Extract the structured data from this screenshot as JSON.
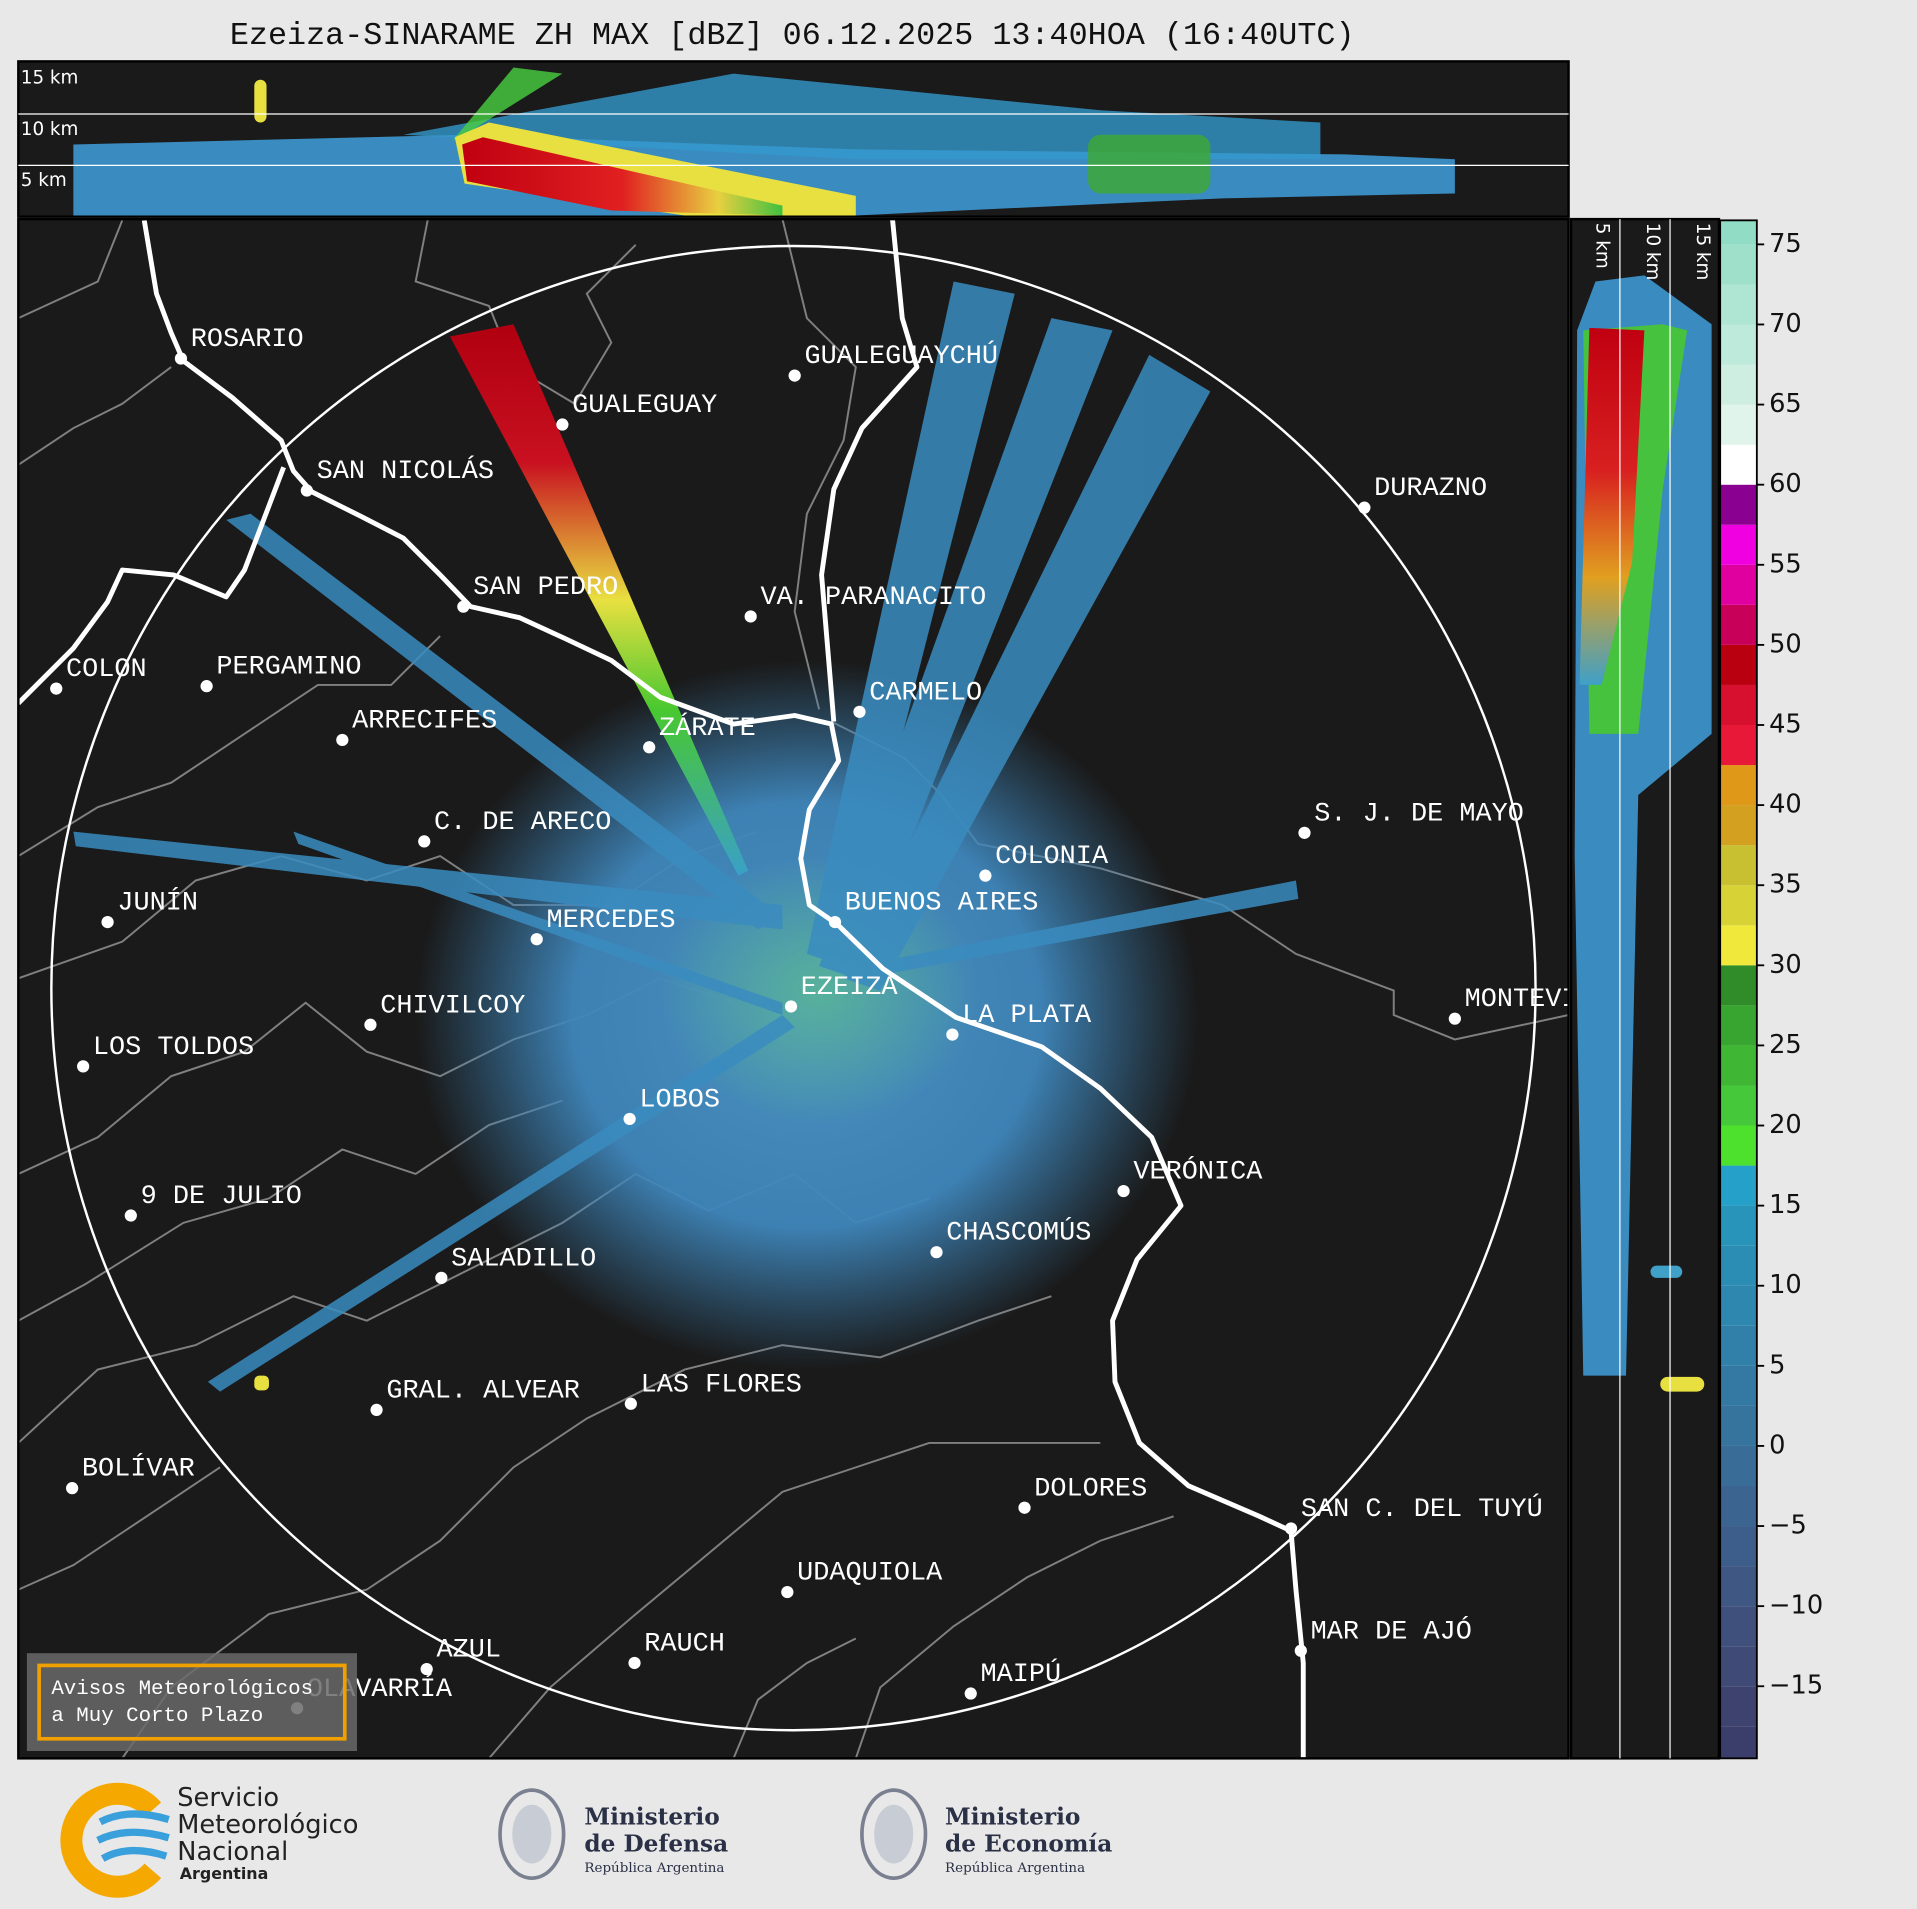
{
  "title": "Ezeiza-SINARAME ZH MAX [dBZ] 06.12.2025 13:40HOA (16:40UTC)",
  "height_labels_top": [
    "15 km",
    "10 km",
    "5 km"
  ],
  "height_labels_side": [
    "5 km",
    "10 km",
    "15 km"
  ],
  "cities": [
    "ROSARIO",
    "GUALEGUAY",
    "GUALEGUAYCHÚ",
    "SAN NICOLÁS",
    "DURAZNO",
    "SAN PEDRO",
    "VA. PARANACITO",
    "COLON",
    "PERGAMINO",
    "CARMELO",
    "ARRECIFES",
    "ZÁRATE",
    "C. DE ARECO",
    "S. J. DE MAYO",
    "COLONIA",
    "JUNÍN",
    "BUENOS AIRES",
    "MERCEDES",
    "EZEIZA",
    "MONTEVIDEO",
    "CHIVILCOY",
    "LA PLATA",
    "LOS TOLDOS",
    "LOBOS",
    "VERÓNICA",
    "9 DE JULIO",
    "CHASCOMÚS",
    "SALADILLO",
    "GRAL. ALVEAR",
    "LAS FLORES",
    "BOLÍVAR",
    "DOLORES",
    "SAN C. DEL TUYÚ",
    "UDAQUIOLA",
    "RAUCH",
    "MAR DE AJÓ",
    "AZUL",
    "MAIPÚ",
    "OLAVARRÍA"
  ],
  "colorbar": {
    "lim": [
      -19.5,
      76.5
    ],
    "ticks": [
      75,
      70,
      65,
      60,
      55,
      50,
      45,
      40,
      35,
      30,
      25,
      20,
      15,
      10,
      5,
      0,
      {
        "value": -5,
        "label": "−5"
      },
      {
        "value": -10,
        "label": "−10"
      },
      {
        "value": -15,
        "label": "−15"
      }
    ]
  },
  "notice": [
    "Avisos Meteorológicos",
    "a Muy Corto Plazo"
  ],
  "logos": {
    "smn": [
      "Servicio",
      "Meteorológico",
      "Nacional",
      "Argentina"
    ],
    "defensa": [
      "Ministerio",
      "de Defensa",
      "República Argentina"
    ],
    "economia": [
      "Ministerio",
      "de Economía",
      "República Argentina"
    ]
  }
}
